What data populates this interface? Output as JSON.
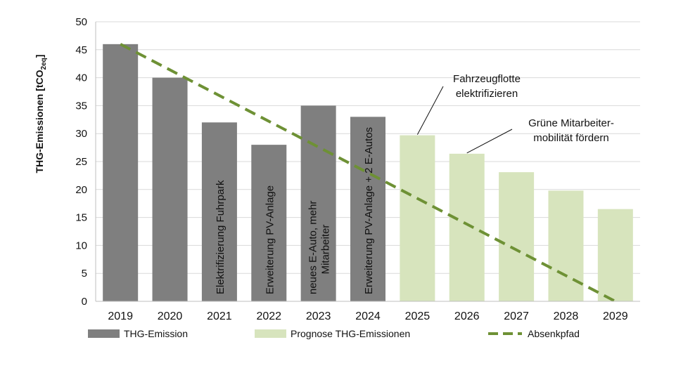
{
  "chart_data": {
    "type": "bar",
    "title": "",
    "xlabel": "",
    "ylabel": "THG-Emissionen [tCO",
    "ylabel_sub": "2eq",
    "ylabel_close": "]",
    "ylim": [
      0,
      50
    ],
    "yticks": [
      0,
      5,
      10,
      15,
      20,
      25,
      30,
      35,
      40,
      45,
      50
    ],
    "grid": true,
    "legend_position": "bottom",
    "categories": [
      "2019",
      "2020",
      "2021",
      "2022",
      "2023",
      "2024",
      "2025",
      "2026",
      "2027",
      "2028",
      "2029"
    ],
    "series": [
      {
        "name": "THG-Emission",
        "kind": "bar",
        "color": "#7f7f7f",
        "values": [
          46,
          40,
          32,
          28,
          35,
          33,
          null,
          null,
          null,
          null,
          null
        ]
      },
      {
        "name": "Prognose THG-Emissionen",
        "kind": "bar",
        "color": "#d7e4bd",
        "values": [
          null,
          null,
          null,
          null,
          null,
          null,
          29.7,
          26.4,
          23.1,
          19.8,
          16.5
        ]
      },
      {
        "name": "Absenkpfad",
        "kind": "line",
        "style": "dashed",
        "color": "#6e9135",
        "values": [
          46,
          41.4,
          36.8,
          32.2,
          27.6,
          23,
          18.4,
          13.8,
          9.2,
          4.6,
          0
        ]
      }
    ],
    "bar_annotations": [
      {
        "category": "2021",
        "lines": [
          "Elektrifizierung Fuhrpark"
        ]
      },
      {
        "category": "2022",
        "lines": [
          "Erweiterung PV-Anlage"
        ]
      },
      {
        "category": "2023",
        "lines": [
          "neues E-Auto, mehr",
          "Mitarbeiter"
        ]
      },
      {
        "category": "2024",
        "lines": [
          "Erweiterung PV-Anlage + 2 E-Autos"
        ]
      }
    ],
    "callouts": [
      {
        "category": "2025",
        "lines": [
          "Fahrzeugflotte",
          "elektrifizieren"
        ]
      },
      {
        "category": "2026",
        "lines": [
          "Grüne Mitarbeiter-",
          "mobilität fördern"
        ]
      }
    ],
    "colors": {
      "actual": "#7f7f7f",
      "forecast": "#d7e4bd",
      "path": "#6e9135",
      "grid": "#d9d9d9"
    }
  }
}
